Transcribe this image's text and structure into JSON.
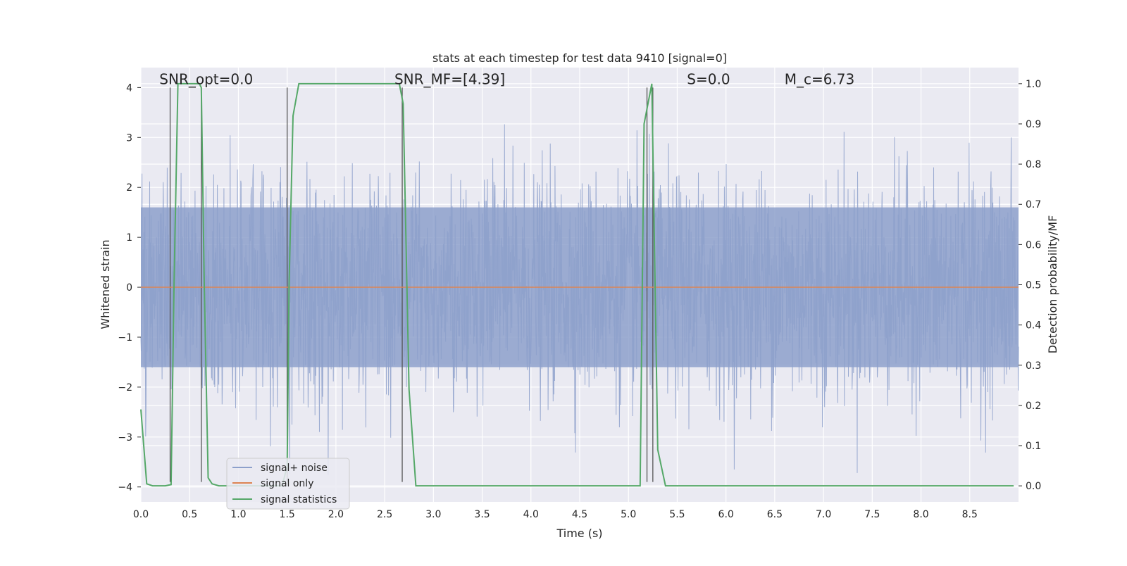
{
  "chart_data": {
    "type": "line",
    "title": "stats at each timestep for test data 9410 [signal=0]",
    "xlabel": "Time (s)",
    "ylabel": "Whitened strain",
    "y2label": "Detection probability/MF",
    "xlim": [
      0.0,
      9.0
    ],
    "ylim": [
      -4.3,
      4.4
    ],
    "y2lim": [
      -0.04,
      1.04
    ],
    "xticks": [
      "0.0",
      "0.5",
      "1.0",
      "1.5",
      "2.0",
      "2.5",
      "3.0",
      "3.5",
      "4.0",
      "4.5",
      "5.0",
      "5.5",
      "6.0",
      "6.5",
      "7.0",
      "7.5",
      "8.0",
      "8.5"
    ],
    "yticks": [
      "−4",
      "−3",
      "−2",
      "−1",
      "0",
      "1",
      "2",
      "3",
      "4"
    ],
    "y2ticks": [
      "0.0",
      "0.1",
      "0.2",
      "0.3",
      "0.4",
      "0.5",
      "0.6",
      "0.7",
      "0.8",
      "0.9",
      "1.0"
    ],
    "grid": true,
    "legend_position": "lower-left",
    "annotations": [
      {
        "name": "snr-opt",
        "text": "SNR_opt=0.0",
        "x": 0.19,
        "y": 4.1
      },
      {
        "name": "snr-mf",
        "text": "SNR_MF=[4.39]",
        "x": 2.6,
        "y": 4.1
      },
      {
        "name": "s-value",
        "text": "S=0.0",
        "x": 5.6,
        "y": 4.1
      },
      {
        "name": "mc-value",
        "text": "M_c=6.73",
        "x": 6.6,
        "y": 4.1
      }
    ],
    "series": [
      {
        "name": "signal+ noise",
        "color": "#8da0cb",
        "axis": "left",
        "kind": "noise-strain",
        "band": [
          -1.6,
          1.6
        ],
        "peaks": [
          -3.9,
          3.35
        ]
      },
      {
        "name": "signal only",
        "color": "#dd8452",
        "axis": "left",
        "x": [
          0.0,
          9.0
        ],
        "y": [
          0.0,
          0.0
        ]
      },
      {
        "name": "signal statistics",
        "color": "#55a868",
        "axis": "right",
        "x": [
          0.0,
          0.06,
          0.12,
          0.25,
          0.31,
          0.34,
          0.38,
          0.6,
          0.62,
          0.65,
          0.69,
          0.73,
          0.8,
          1.45,
          1.5,
          1.52,
          1.56,
          1.62,
          2.65,
          2.69,
          2.75,
          2.82,
          5.12,
          5.16,
          5.24,
          5.3,
          5.38,
          8.95
        ],
        "y": [
          0.19,
          0.005,
          0.0,
          0.0,
          0.003,
          0.5,
          1.0,
          1.0,
          0.99,
          0.5,
          0.02,
          0.005,
          0.0,
          0.0,
          0.05,
          0.5,
          0.92,
          1.0,
          1.0,
          0.95,
          0.24,
          0.0,
          0.0,
          0.9,
          1.0,
          0.09,
          0.0,
          0.0
        ]
      }
    ],
    "event_lines": [
      0.3,
      0.62,
      1.5,
      2.68,
      5.19,
      5.25
    ]
  }
}
